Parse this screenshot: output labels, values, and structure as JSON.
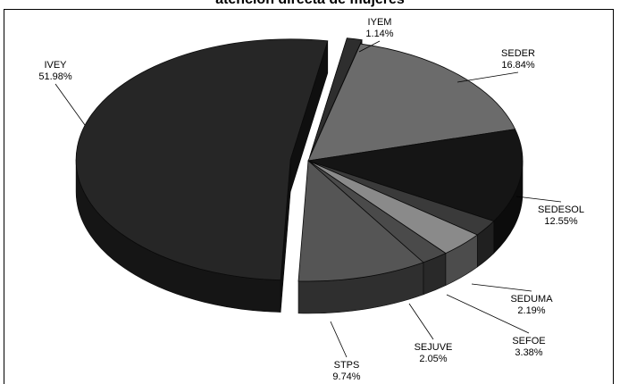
{
  "chart_data": {
    "type": "pie",
    "title": "atención directa de mujeres",
    "slices": [
      {
        "label": "IYEM",
        "value_text": "1.14%",
        "value": 1.14,
        "color": "#2e2e2e"
      },
      {
        "label": "SEDER",
        "value_text": "16.84%",
        "value": 16.84,
        "color": "#6b6b6b"
      },
      {
        "label": "SEDESOL",
        "value_text": "12.55%",
        "value": 12.55,
        "color": "#151515"
      },
      {
        "label": "SEDUMA",
        "value_text": "2.19%",
        "value": 2.19,
        "color": "#3a3a3a"
      },
      {
        "label": "SEFOE",
        "value_text": "3.38%",
        "value": 3.38,
        "color": "#8a8a8a"
      },
      {
        "label": "SEJUVE",
        "value_text": "2.05%",
        "value": 2.05,
        "color": "#4a4a4a"
      },
      {
        "label": "STPS",
        "value_text": "9.74%",
        "value": 9.74,
        "color": "#555555"
      },
      {
        "label": "IVEY",
        "value_text": "51.98%",
        "value": 51.98,
        "color": "#262626"
      }
    ]
  }
}
